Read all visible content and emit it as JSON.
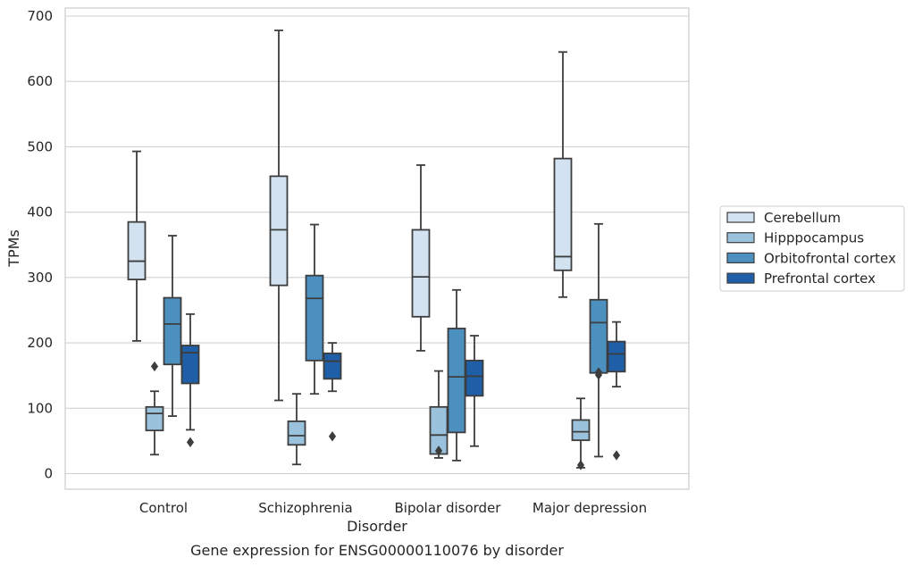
{
  "chart_data": {
    "type": "box",
    "xlabel": "Disorder",
    "ylabel": "TPMs",
    "caption": "Gene expression for ENSG00000110076 by disorder",
    "ylim": [
      -25,
      710
    ],
    "yticks": [
      0,
      100,
      200,
      300,
      400,
      500,
      600,
      700
    ],
    "grid": "horizontal",
    "legend_position": "right",
    "categories": [
      "Control",
      "Schizophrenia",
      "Bipolar disorder",
      "Major depression"
    ],
    "series": [
      {
        "name": "Cerebellum",
        "color": "#d2e2f1",
        "boxes": [
          {
            "whislo": 203,
            "q1": 297,
            "med": 325,
            "q3": 385,
            "whishi": 493,
            "fliers": []
          },
          {
            "whislo": 112,
            "q1": 288,
            "med": 373,
            "q3": 455,
            "whishi": 678,
            "fliers": []
          },
          {
            "whislo": 188,
            "q1": 240,
            "med": 301,
            "q3": 373,
            "whishi": 472,
            "fliers": []
          },
          {
            "whislo": 270,
            "q1": 311,
            "med": 332,
            "q3": 482,
            "whishi": 645,
            "fliers": []
          }
        ]
      },
      {
        "name": "Hipppocampus",
        "color": "#9ac2dc",
        "boxes": [
          {
            "whislo": 29,
            "q1": 66,
            "med": 92,
            "q3": 102,
            "whishi": 126,
            "fliers": [
              164
            ]
          },
          {
            "whislo": 14,
            "q1": 44,
            "med": 58,
            "q3": 80,
            "whishi": 122,
            "fliers": []
          },
          {
            "whislo": 24,
            "q1": 30,
            "med": 59,
            "q3": 102,
            "whishi": 157,
            "fliers": [
              35
            ]
          },
          {
            "whislo": 9,
            "q1": 51,
            "med": 64,
            "q3": 82,
            "whishi": 115,
            "fliers": [
              13
            ]
          }
        ]
      },
      {
        "name": "Orbitofrontal cortex",
        "color": "#4c90c0",
        "boxes": [
          {
            "whislo": 88,
            "q1": 167,
            "med": 229,
            "q3": 269,
            "whishi": 364,
            "fliers": []
          },
          {
            "whislo": 122,
            "q1": 173,
            "med": 268,
            "q3": 303,
            "whishi": 381,
            "fliers": []
          },
          {
            "whislo": 20,
            "q1": 63,
            "med": 148,
            "q3": 222,
            "whishi": 281,
            "fliers": []
          },
          {
            "whislo": 26,
            "q1": 154,
            "med": 231,
            "q3": 266,
            "whishi": 382,
            "fliers": [
              151,
              155
            ]
          }
        ]
      },
      {
        "name": "Prefrontal cortex",
        "color": "#1f5fa7",
        "boxes": [
          {
            "whislo": 67,
            "q1": 138,
            "med": 185,
            "q3": 196,
            "whishi": 244,
            "fliers": [
              48
            ]
          },
          {
            "whislo": 126,
            "q1": 145,
            "med": 172,
            "q3": 184,
            "whishi": 200,
            "fliers": [
              57
            ]
          },
          {
            "whislo": 42,
            "q1": 119,
            "med": 149,
            "q3": 173,
            "whishi": 211,
            "fliers": []
          },
          {
            "whislo": 133,
            "q1": 156,
            "med": 183,
            "q3": 202,
            "whishi": 232,
            "fliers": [
              28
            ]
          }
        ]
      }
    ]
  }
}
